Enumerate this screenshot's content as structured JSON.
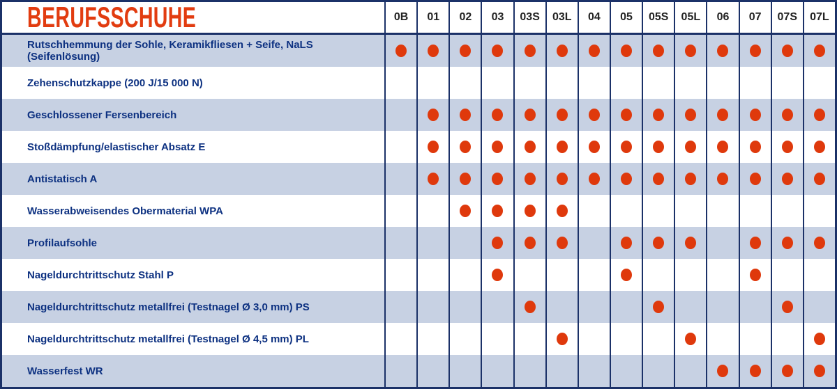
{
  "title": "BERUFSSCHUHE",
  "columns": [
    "0B",
    "01",
    "02",
    "03",
    "03S",
    "03L",
    "04",
    "05",
    "05S",
    "05L",
    "06",
    "07",
    "07S",
    "07L"
  ],
  "rows": [
    {
      "label": "Rutschhemmung der Sohle, Keramikfliesen + Seife, NaLS (Seifenlösung)",
      "dots": [
        1,
        1,
        1,
        1,
        1,
        1,
        1,
        1,
        1,
        1,
        1,
        1,
        1,
        1
      ]
    },
    {
      "label": "Zehenschutzkappe (200 J/15 000 N)",
      "dots": [
        0,
        0,
        0,
        0,
        0,
        0,
        0,
        0,
        0,
        0,
        0,
        0,
        0,
        0
      ]
    },
    {
      "label": "Geschlossener Fersenbereich",
      "dots": [
        0,
        1,
        1,
        1,
        1,
        1,
        1,
        1,
        1,
        1,
        1,
        1,
        1,
        1
      ]
    },
    {
      "label": "Stoßdämpfung/elastischer Absatz E",
      "dots": [
        0,
        1,
        1,
        1,
        1,
        1,
        1,
        1,
        1,
        1,
        1,
        1,
        1,
        1
      ]
    },
    {
      "label": "Antistatisch A",
      "dots": [
        0,
        1,
        1,
        1,
        1,
        1,
        1,
        1,
        1,
        1,
        1,
        1,
        1,
        1
      ]
    },
    {
      "label": "Wasserabweisendes Obermaterial WPA",
      "dots": [
        0,
        0,
        1,
        1,
        1,
        1,
        0,
        0,
        0,
        0,
        0,
        0,
        0,
        0
      ]
    },
    {
      "label": "Profilaufsohle",
      "dots": [
        0,
        0,
        0,
        1,
        1,
        1,
        0,
        1,
        1,
        1,
        0,
        1,
        1,
        1
      ]
    },
    {
      "label": "Nageldurchtrittschutz Stahl P",
      "dots": [
        0,
        0,
        0,
        1,
        0,
        0,
        0,
        1,
        0,
        0,
        0,
        1,
        0,
        0
      ]
    },
    {
      "label": "Nageldurchtrittschutz metallfrei (Testnagel Ø 3,0 mm) PS",
      "dots": [
        0,
        0,
        0,
        0,
        1,
        0,
        0,
        0,
        1,
        0,
        0,
        0,
        1,
        0
      ]
    },
    {
      "label": "Nageldurchtrittschutz metallfrei (Testnagel Ø 4,5 mm) PL",
      "dots": [
        0,
        0,
        0,
        0,
        0,
        1,
        0,
        0,
        0,
        1,
        0,
        0,
        0,
        1
      ]
    },
    {
      "label": "Wasserfest WR",
      "dots": [
        0,
        0,
        0,
        0,
        0,
        0,
        0,
        0,
        0,
        0,
        1,
        1,
        1,
        1
      ]
    }
  ],
  "colors": {
    "title_orange": "#e23c10",
    "dot_orange": "#df390c",
    "grid_navy": "#1b3168",
    "label_navy": "#0d3181",
    "header_text": "#232323",
    "row_alt_blue": "#c7d1e3",
    "row_white": "#ffffff"
  }
}
